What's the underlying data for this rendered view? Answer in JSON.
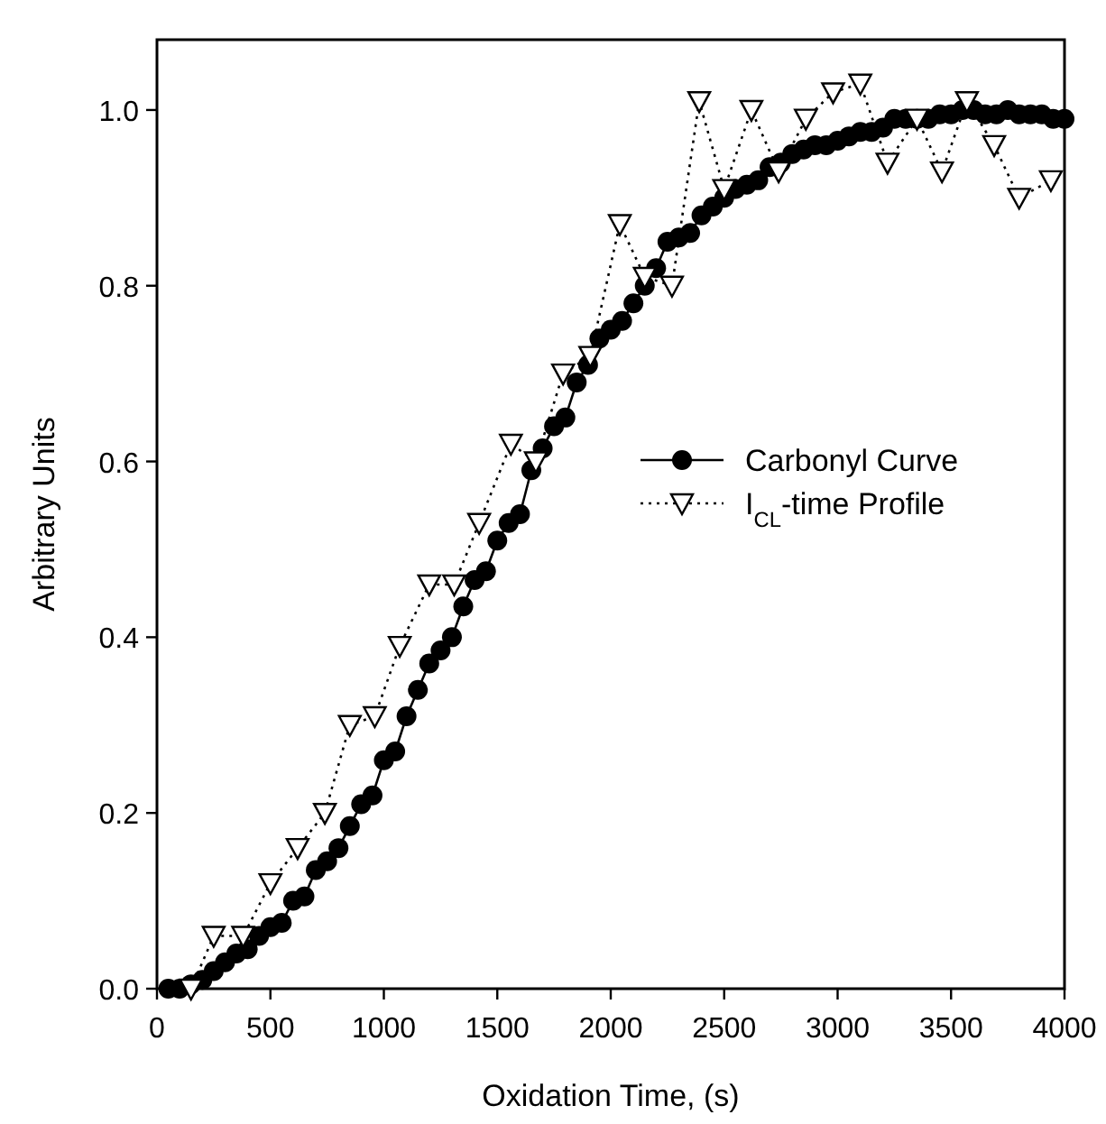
{
  "chart_data": {
    "type": "line",
    "xlabel": "Oxidation Time, (s)",
    "ylabel": "Arbitrary Units",
    "xlim": [
      0,
      4000
    ],
    "xticks": [
      0,
      500,
      1000,
      1500,
      2000,
      2500,
      3000,
      3500,
      4000
    ],
    "ylim": [
      0,
      1.08
    ],
    "yticks": [
      {
        "value": 0,
        "label": "0.0"
      },
      0.2,
      0.4,
      0.6,
      0.8,
      {
        "value": 1,
        "label": "1.0"
      }
    ],
    "grid": false,
    "legend": "right",
    "series": [
      {
        "name": "Carbonyl Curve",
        "color": "#000000",
        "marker": "circle",
        "line_style": "solid",
        "x": [
          50,
          100,
          150,
          200,
          250,
          300,
          350,
          400,
          450,
          500,
          550,
          600,
          650,
          700,
          750,
          800,
          850,
          900,
          950,
          1000,
          1050,
          1100,
          1150,
          1200,
          1250,
          1300,
          1350,
          1400,
          1450,
          1500,
          1550,
          1600,
          1650,
          1700,
          1750,
          1800,
          1850,
          1900,
          1950,
          2000,
          2050,
          2100,
          2150,
          2200,
          2250,
          2300,
          2350,
          2400,
          2450,
          2500,
          2550,
          2600,
          2650,
          2700,
          2750,
          2800,
          2850,
          2900,
          2950,
          3000,
          3050,
          3100,
          3150,
          3200,
          3250,
          3300,
          3350,
          3400,
          3450,
          3500,
          3550,
          3600,
          3650,
          3700,
          3750,
          3800,
          3850,
          3900,
          3950,
          4000
        ],
        "values": [
          0,
          0,
          0.005,
          0.01,
          0.02,
          0.03,
          0.04,
          0.045,
          0.06,
          0.07,
          0.075,
          0.1,
          0.105,
          0.135,
          0.145,
          0.16,
          0.185,
          0.21,
          0.22,
          0.26,
          0.27,
          0.31,
          0.34,
          0.37,
          0.385,
          0.4,
          0.435,
          0.465,
          0.475,
          0.51,
          0.53,
          0.54,
          0.59,
          0.615,
          0.64,
          0.65,
          0.69,
          0.71,
          0.74,
          0.75,
          0.76,
          0.78,
          0.8,
          0.82,
          0.85,
          0.855,
          0.86,
          0.88,
          0.89,
          0.9,
          0.91,
          0.915,
          0.92,
          0.935,
          0.94,
          0.95,
          0.955,
          0.96,
          0.96,
          0.965,
          0.97,
          0.975,
          0.975,
          0.98,
          0.99,
          0.99,
          0.99,
          0.99,
          0.995,
          0.995,
          1.0,
          1.0,
          0.995,
          0.995,
          1.0,
          0.995,
          0.995,
          0.995,
          0.99,
          0.99
        ]
      },
      {
        "name": "I$_{CL}$-time Profile",
        "color": "#000000",
        "marker": "triangle",
        "line_style": "dotted",
        "x": [
          150,
          250,
          380,
          500,
          620,
          740,
          850,
          960,
          1070,
          1200,
          1310,
          1420,
          1560,
          1670,
          1790,
          1910,
          2040,
          2150,
          2270,
          2390,
          2500,
          2620,
          2740,
          2860,
          2980,
          3100,
          3220,
          3350,
          3460,
          3570,
          3690,
          3800,
          3940
        ],
        "values": [
          0.0,
          0.06,
          0.06,
          0.12,
          0.16,
          0.2,
          0.3,
          0.31,
          0.39,
          0.46,
          0.46,
          0.53,
          0.62,
          0.6,
          0.7,
          0.72,
          0.87,
          0.81,
          0.8,
          1.01,
          0.91,
          1.0,
          0.93,
          0.99,
          1.02,
          1.03,
          0.94,
          0.99,
          0.93,
          1.01,
          0.96,
          0.9,
          0.92
        ]
      }
    ]
  }
}
